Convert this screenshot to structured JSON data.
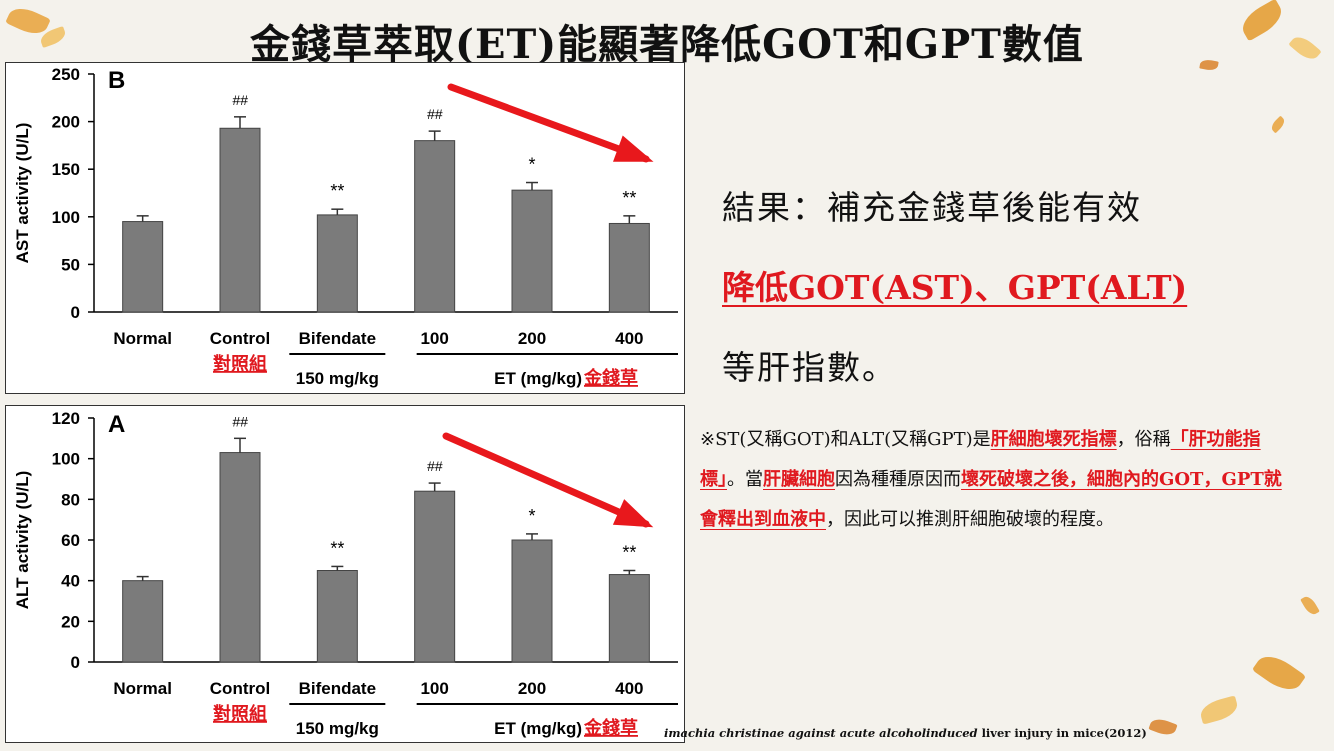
{
  "title": "金錢草萃取(ET)能顯著降低GOT和GPT數值",
  "results": {
    "line1": "結果：補充金錢草後能有效",
    "line2": "降低GOT(AST)、GPT(ALT)",
    "line3": "等肝指數。"
  },
  "note": {
    "p1": "※ST(又稱GOT)和ALT(又稱GPT)是",
    "r1": "肝細胞壞死指標",
    "p2": "，俗稱",
    "r2": "「肝功能指標」",
    "p3": "。當",
    "r3": "肝臟細胞",
    "p4": "因為種種原因而",
    "r4": "壞死破壞之後，細胞內的GOT，GPT就會釋出到血液中",
    "p5": "，因此可以推測肝細胞破壞的程度。"
  },
  "citation": {
    "italic": "imachia christinae against acute alcoholinduced",
    "normal": " liver injury in mice(2012)"
  },
  "colors": {
    "bar": "#7b7b7b",
    "arrow": "#e8181c",
    "red_text": "#e0191f"
  },
  "chart_data": [
    {
      "type": "bar",
      "panel_label": "B",
      "ylabel": "AST activity (U/L)",
      "ylim": [
        0,
        250
      ],
      "yticks": [
        0,
        50,
        100,
        150,
        200,
        250
      ],
      "categories": [
        "Normal",
        "Control",
        "Bifendate",
        "100",
        "200",
        "400"
      ],
      "values": [
        95,
        193,
        102,
        180,
        128,
        93
      ],
      "errors": [
        6,
        12,
        6,
        10,
        8,
        8
      ],
      "annotations": [
        "",
        "##",
        "**",
        "##",
        "*",
        "**"
      ],
      "sublabels": {
        "control": "對照組",
        "bifendate_dose": "150 mg/kg",
        "et_dose": "ET (mg/kg)",
        "et_name": "金錢草"
      },
      "grid": false
    },
    {
      "type": "bar",
      "panel_label": "A",
      "ylabel": "ALT activity (U/L)",
      "ylim": [
        0,
        120
      ],
      "yticks": [
        0,
        20,
        40,
        60,
        80,
        100,
        120
      ],
      "categories": [
        "Normal",
        "Control",
        "Bifendate",
        "100",
        "200",
        "400"
      ],
      "values": [
        40,
        103,
        45,
        84,
        60,
        43
      ],
      "errors": [
        2,
        7,
        2,
        4,
        3,
        2
      ],
      "annotations": [
        "",
        "##",
        "**",
        "##",
        "*",
        "**"
      ],
      "sublabels": {
        "control": "對照組",
        "bifendate_dose": "150 mg/kg",
        "et_dose": "ET (mg/kg)",
        "et_name": "金錢草"
      },
      "grid": false
    }
  ]
}
